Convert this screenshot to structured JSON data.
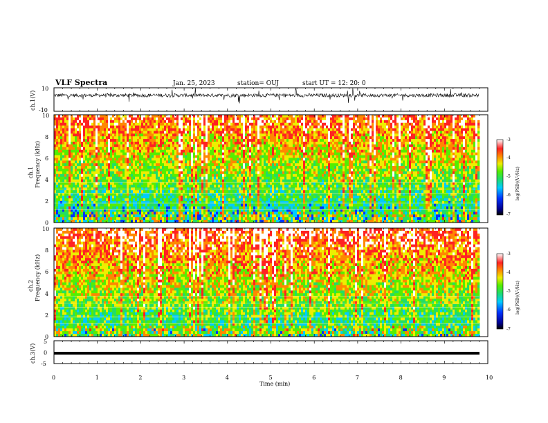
{
  "header": {
    "title": "VLF Spectra",
    "date": "Jan. 25, 2023",
    "station": "station= OUJ",
    "start": "start  UT =   12: 20: 0"
  },
  "chart_data": [
    {
      "type": "line",
      "panel": "ch1-waveform",
      "ylabel": "ch.1(V)",
      "ylim": [
        -10,
        10
      ],
      "yticks": [
        "10",
        "-10"
      ],
      "xlim": [
        0,
        10
      ],
      "description_level": 3.6
    },
    {
      "type": "heatmap",
      "panel": "ch1-spectrogram",
      "ylabel_top": "ch.1",
      "ylabel": "Frequency (kHz)",
      "ylim": [
        0,
        10
      ],
      "yticks": [
        "0",
        "2",
        "4",
        "6",
        "8",
        "10"
      ],
      "xlim": [
        0,
        10
      ],
      "data_end_min": 9.8,
      "colorbar": {
        "label": "log(PSD)(V²/Hz)",
        "range": [
          -7,
          -3
        ],
        "ticks": [
          "-3",
          "-4",
          "-5",
          "-6",
          "-7"
        ]
      }
    },
    {
      "type": "heatmap",
      "panel": "ch2-spectrogram",
      "ylabel_top": "ch.2",
      "ylabel": "Frequency (kHz)",
      "ylim": [
        0,
        10
      ],
      "yticks": [
        "0",
        "2",
        "4",
        "6",
        "8",
        "10"
      ],
      "xlim": [
        0,
        10
      ],
      "data_end_min": 9.8,
      "colorbar": {
        "label": "log(PSD)(V²/Hz)",
        "range": [
          -7,
          -3
        ],
        "ticks": [
          "-3",
          "-4",
          "-5",
          "-6",
          "-7"
        ]
      }
    },
    {
      "type": "line",
      "panel": "ch3-waveform",
      "ylabel": "ch.3(V)",
      "ylim": [
        -5,
        5
      ],
      "yticks": [
        "5",
        "0",
        "-5"
      ],
      "xlim": [
        0,
        10
      ],
      "constant_value": -0.4
    }
  ],
  "xaxis": {
    "label": "Time (min)",
    "ticks": [
      "0",
      "1",
      "2",
      "3",
      "4",
      "5",
      "6",
      "7",
      "8",
      "9",
      "10"
    ]
  }
}
